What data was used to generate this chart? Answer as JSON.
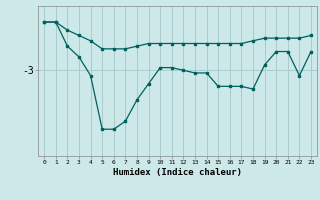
{
  "xlabel": "Humidex (Indice chaleur)",
  "ylabel": "",
  "bg_color": "#cce8e8",
  "grid_color": "#aacccc",
  "line_color": "#006060",
  "x": [
    0,
    1,
    2,
    3,
    4,
    5,
    6,
    7,
    8,
    9,
    10,
    11,
    12,
    13,
    14,
    15,
    16,
    17,
    18,
    19,
    20,
    21,
    22,
    23
  ],
  "line1": [
    -2.1,
    -2.1,
    -2.25,
    -2.35,
    -2.45,
    -2.6,
    -2.6,
    -2.6,
    -2.55,
    -2.5,
    -2.5,
    -2.5,
    -2.5,
    -2.5,
    -2.5,
    -2.5,
    -2.5,
    -2.5,
    -2.45,
    -2.4,
    -2.4,
    -2.4,
    -2.4,
    -2.35
  ],
  "line2": [
    -2.1,
    -2.1,
    -2.55,
    -2.75,
    -3.1,
    -4.1,
    -4.1,
    -3.95,
    -3.55,
    -3.25,
    -2.95,
    -2.95,
    -3.0,
    -3.05,
    -3.05,
    -3.3,
    -3.3,
    -3.3,
    -3.35,
    -2.9,
    -2.65,
    -2.65,
    -3.1,
    -2.65
  ],
  "yticks": [
    -3
  ],
  "ylim": [
    -4.6,
    -1.8
  ],
  "xlim": [
    -0.5,
    23.5
  ]
}
